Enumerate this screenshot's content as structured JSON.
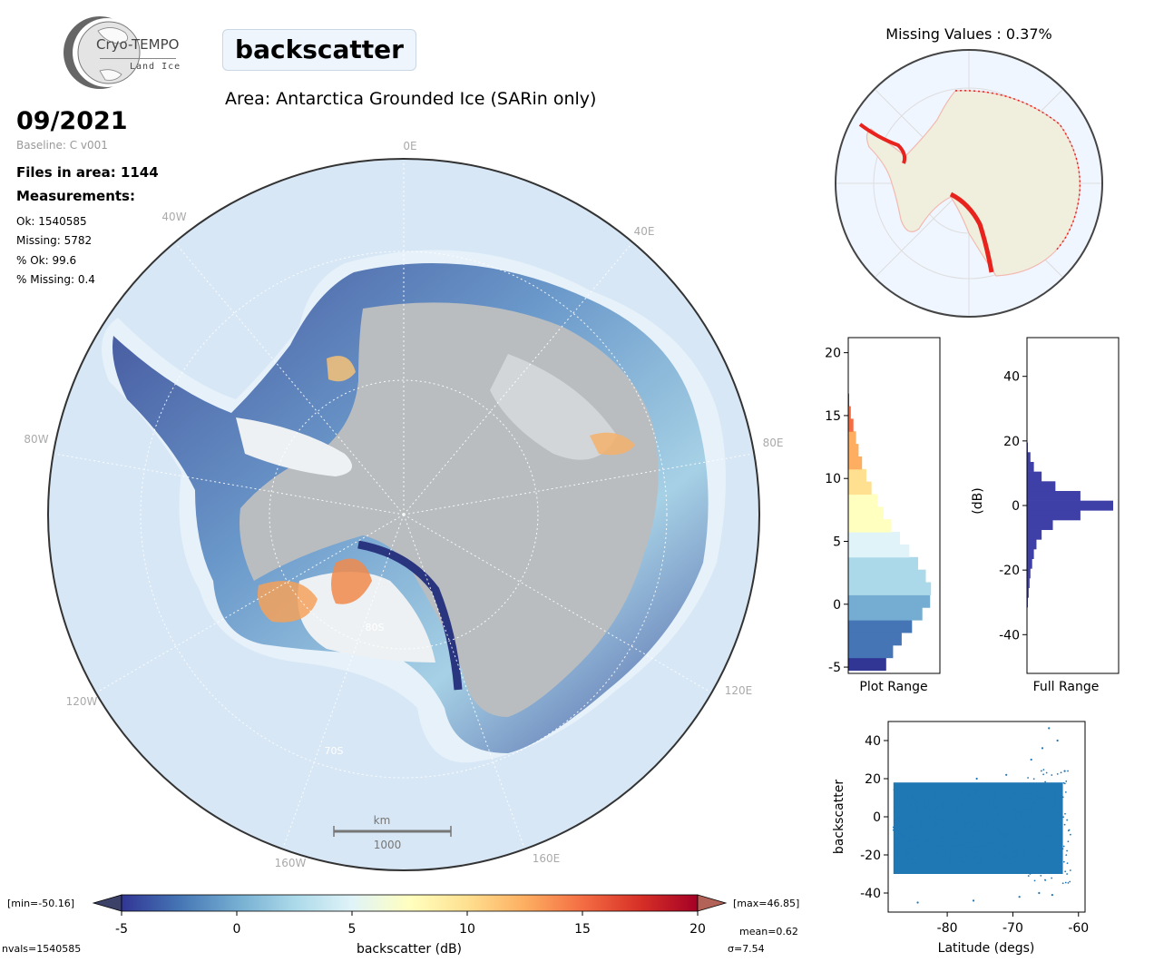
{
  "logo": {
    "name": "Cryo-TEMPO",
    "sub": "Land Ice"
  },
  "header": {
    "parameter": "backscatter",
    "area": "Area: Antarctica Grounded Ice (SARin only)",
    "date": "09/2021",
    "baseline": "Baseline: C v001",
    "files": "Files in area: 1144",
    "measurements_title": "Measurements:",
    "stats": [
      "Ok: 1540585",
      "Missing: 5782",
      "% Ok: 99.6",
      "% Missing: 0.4"
    ]
  },
  "main_map": {
    "lon_labels": [
      "0E",
      "40E",
      "80E",
      "120E",
      "160E",
      "160W",
      "120W",
      "80W",
      "40W"
    ],
    "lat_labels": [
      "80S",
      "70S"
    ],
    "scalebar_unit": "km",
    "scalebar_value": "1000",
    "colors": {
      "ocean": "#d7e7f5",
      "ice_grey": "#b8bcbf",
      "ice_white": "#eef1f3"
    }
  },
  "missing_map": {
    "title": "Missing Values : 0.37%",
    "colors": {
      "land": "#f0eedd",
      "ocean": "#f0f6ff",
      "missing": "#e8231e"
    }
  },
  "colorbar": {
    "min_label": "[min=-50.16]",
    "max_label": "[max=46.85]",
    "ticks": [
      "-5",
      "0",
      "5",
      "10",
      "15",
      "20"
    ],
    "label": "backscatter (dB)",
    "mean": "mean=0.62",
    "sigma": "σ=7.54",
    "nvals": "nvals=1540585",
    "colors": [
      "#313695",
      "#4575b4",
      "#74add1",
      "#abd9e9",
      "#e0f3f8",
      "#ffffbf",
      "#fee090",
      "#fdae61",
      "#f46d43",
      "#d73027",
      "#a50026"
    ]
  },
  "chart_data": [
    {
      "type": "bar",
      "name": "plot_range_histogram",
      "xlabel": "Plot Range",
      "ylabel": "",
      "ylim": [
        -5.5,
        21.2
      ],
      "yticks": [
        "-5",
        "0",
        "5",
        "10",
        "15",
        "20"
      ],
      "orientation": "horizontal",
      "bins_center": [
        -4.75,
        -3.75,
        -2.75,
        -1.75,
        -0.75,
        0.25,
        1.25,
        2.25,
        3.25,
        4.25,
        5.25,
        6.25,
        7.25,
        8.25,
        9.25,
        10.25,
        11.25,
        12.25,
        13.25,
        14.25,
        15.25,
        16.25
      ],
      "values": [
        0.44,
        0.52,
        0.62,
        0.74,
        0.86,
        0.95,
        0.96,
        0.9,
        0.81,
        0.71,
        0.6,
        0.5,
        0.41,
        0.34,
        0.27,
        0.21,
        0.16,
        0.12,
        0.09,
        0.06,
        0.03,
        0.01
      ]
    },
    {
      "type": "bar",
      "name": "full_range_histogram",
      "xlabel": "Full Range",
      "ylabel": "(dB)",
      "ylim": [
        -52,
        52
      ],
      "yticks": [
        "-40",
        "-20",
        "0",
        "20",
        "40"
      ],
      "orientation": "horizontal",
      "bins_center": [
        -30,
        -27,
        -24,
        -21,
        -18,
        -15,
        -12,
        -9,
        -6,
        -3,
        0,
        3,
        6,
        9,
        12,
        15,
        18
      ],
      "values": [
        0.01,
        0.02,
        0.03,
        0.04,
        0.06,
        0.08,
        0.11,
        0.17,
        0.3,
        0.62,
        1.0,
        0.62,
        0.33,
        0.17,
        0.08,
        0.04,
        0.01
      ]
    },
    {
      "type": "scatter",
      "name": "latitude_scatter",
      "xlabel": "Latitude (degs)",
      "ylabel": "backscatter",
      "xlim": [
        -89,
        -59
      ],
      "ylim": [
        -50,
        50
      ],
      "xticks": [
        "-80",
        "-70",
        "-60"
      ],
      "yticks": [
        "-40",
        "-20",
        "0",
        "20",
        "40"
      ],
      "color": "#1f77b4",
      "x_range": [
        -88.2,
        -61.0
      ],
      "y_core_range": [
        -30,
        18
      ],
      "outliers": [
        {
          "x": -64.5,
          "y": 46.5
        },
        {
          "x": -63.2,
          "y": 40.0
        },
        {
          "x": -65.5,
          "y": 36.0
        },
        {
          "x": -67.2,
          "y": 30.0
        },
        {
          "x": -62.1,
          "y": 24.0
        },
        {
          "x": -71.0,
          "y": 22.0
        },
        {
          "x": -75.5,
          "y": 20.0
        },
        {
          "x": -84.5,
          "y": -45.0
        },
        {
          "x": -76.0,
          "y": -44.0
        },
        {
          "x": -69.0,
          "y": -42.0
        },
        {
          "x": -66.0,
          "y": -40.0
        },
        {
          "x": -64.0,
          "y": -41.0
        }
      ]
    }
  ]
}
